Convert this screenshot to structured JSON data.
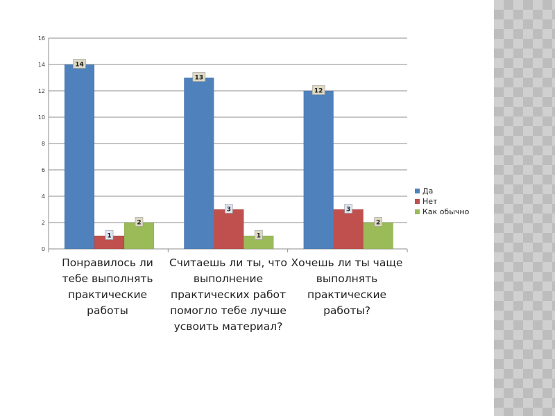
{
  "colors": {
    "yes": "#4f81bd",
    "no": "#c0504d",
    "usual": "#9bbb59"
  },
  "chart_data": {
    "type": "bar",
    "categories": [
      "Понравилось ли тебе выполнять практические работы",
      "Считаешь ли ты, что выполнение практических работ помогло тебе лучше усвоить материал?",
      "Хочешь ли ты чаще выполнять практические работы?"
    ],
    "series": [
      {
        "name": "Да",
        "values": [
          14,
          13,
          12
        ]
      },
      {
        "name": "Нет",
        "values": [
          1,
          3,
          3
        ]
      },
      {
        "name": "Как обычно",
        "values": [
          2,
          1,
          2
        ]
      }
    ],
    "ylim": [
      0,
      16
    ],
    "yticks": [
      0,
      2,
      4,
      6,
      8,
      10,
      12,
      14,
      16
    ],
    "grid": true,
    "legend_position": "right"
  }
}
